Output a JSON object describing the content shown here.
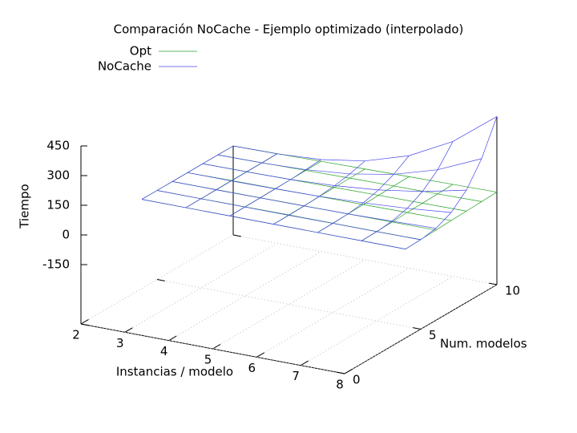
{
  "chart_data": {
    "type": "surface",
    "title": "Comparación NoCache - Ejemplo optimizado (interpolado)",
    "x_label": "Instancias / modelo",
    "y_label": "Num. modelos",
    "z_label": "Tiempo",
    "x": [
      2,
      3,
      4,
      5,
      6,
      7,
      8
    ],
    "y": [
      4,
      5,
      6,
      7,
      8,
      9,
      10
    ],
    "xlim": [
      2,
      8
    ],
    "ylim": [
      0,
      10
    ],
    "zlim": [
      -450,
      450
    ],
    "xticks": [
      2,
      3,
      4,
      5,
      6,
      7,
      8
    ],
    "yticks": [
      0,
      5,
      10
    ],
    "zticks": [
      -150,
      0,
      150,
      300,
      450
    ],
    "grid": true,
    "legend": "top-left",
    "series": [
      {
        "name": "Opt",
        "color": "#22a022",
        "values": [
          [
            0,
            0,
            0,
            0,
            0,
            0,
            0
          ],
          [
            0,
            0,
            1,
            2,
            2,
            2,
            3
          ],
          [
            0,
            1,
            2,
            3,
            4,
            5,
            6
          ],
          [
            0,
            2,
            3,
            5,
            6,
            8,
            9
          ],
          [
            0,
            2,
            4,
            6,
            8,
            10,
            12
          ],
          [
            0,
            2,
            5,
            8,
            10,
            12,
            15
          ],
          [
            0,
            3,
            6,
            9,
            12,
            15,
            18
          ]
        ]
      },
      {
        "name": "NoCache",
        "color": "#4646e8",
        "values": [
          [
            0,
            0,
            0,
            0,
            0,
            0,
            0
          ],
          [
            0,
            0,
            0,
            0,
            1,
            1,
            2
          ],
          [
            0,
            0,
            1,
            2,
            4,
            9,
            15
          ],
          [
            0,
            0,
            2,
            6,
            15,
            29,
            50
          ],
          [
            0,
            1,
            4,
            15,
            35,
            69,
            118
          ],
          [
            0,
            1,
            9,
            29,
            69,
            134,
            232
          ],
          [
            0,
            2,
            15,
            50,
            118,
            232,
            400
          ]
        ]
      }
    ]
  }
}
